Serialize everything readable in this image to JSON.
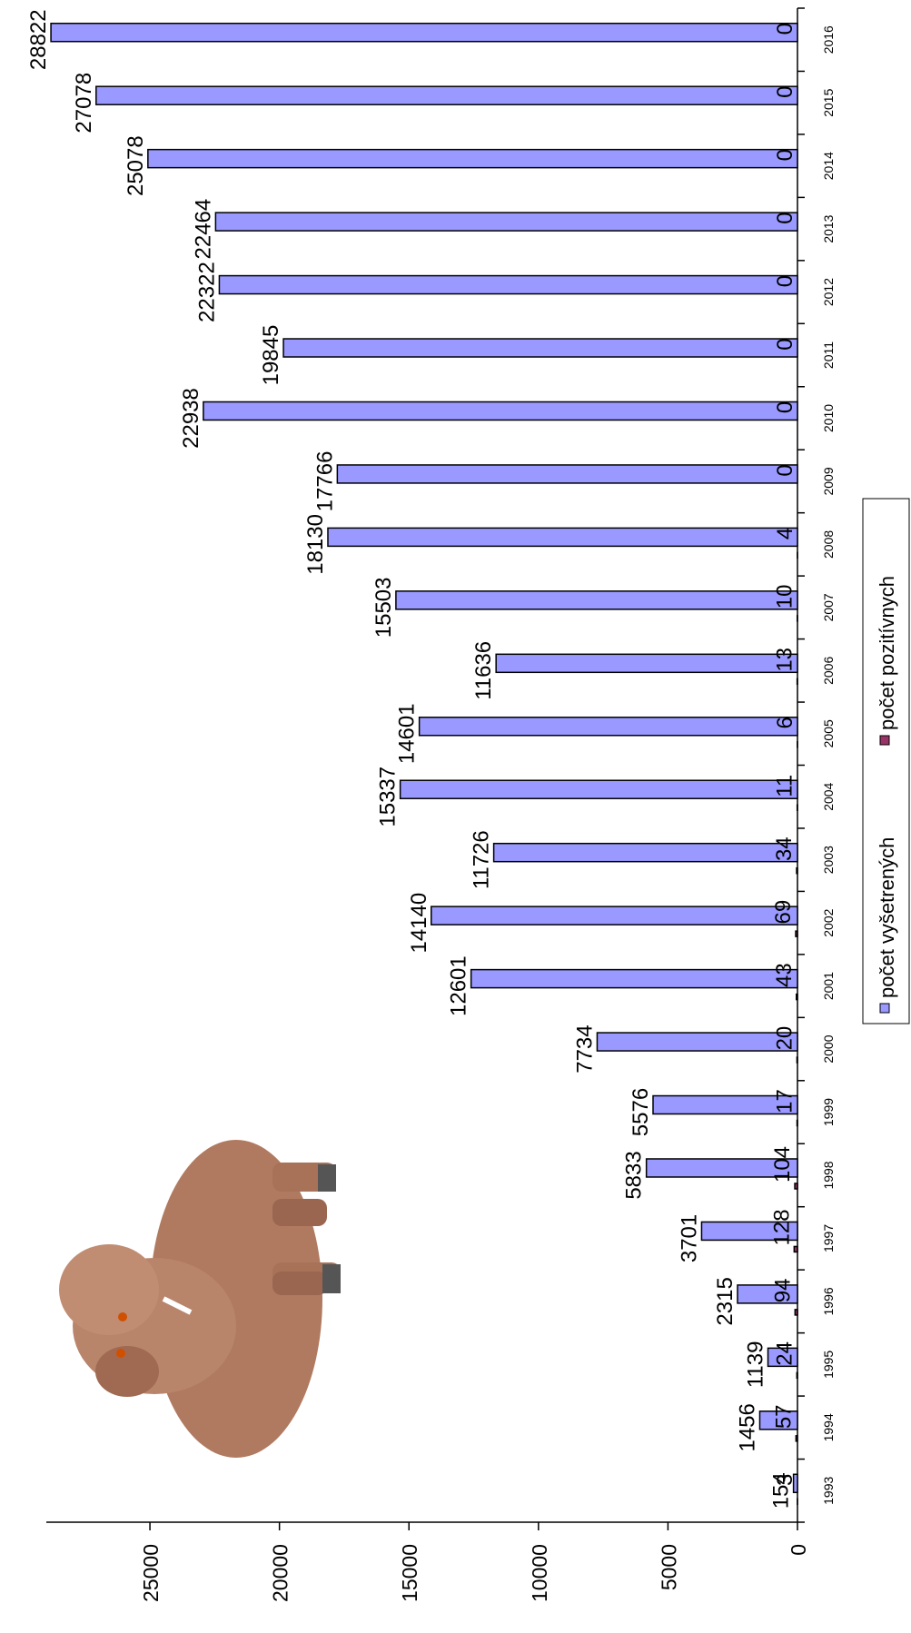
{
  "chart_data": {
    "type": "bar",
    "categories": [
      "1993",
      "1994",
      "1995",
      "1996",
      "1997",
      "1998",
      "1999",
      "2000",
      "2001",
      "2002",
      "2003",
      "2004",
      "2005",
      "2006",
      "2007",
      "2008",
      "2009",
      "2010",
      "2011",
      "2012",
      "2013",
      "2014",
      "2015",
      "2016"
    ],
    "series": [
      {
        "name": "počet vyšetrených",
        "color": "#9999ff",
        "values": [
          154,
          1456,
          1139,
          2315,
          3701,
          5833,
          5576,
          7734,
          12601,
          14140,
          11726,
          15337,
          14601,
          11636,
          15503,
          18130,
          17766,
          22938,
          19845,
          22322,
          22464,
          25078,
          27078,
          28822
        ]
      },
      {
        "name": "počet pozitívnych",
        "color": "#993366",
        "values": [
          3,
          57,
          24,
          94,
          128,
          104,
          17,
          20,
          43,
          69,
          34,
          11,
          6,
          13,
          10,
          4,
          0,
          0,
          0,
          0,
          0,
          0,
          0,
          0
        ]
      }
    ],
    "ylim": [
      0,
      29000
    ],
    "yticks": [
      0,
      5000,
      10000,
      15000,
      20000,
      25000
    ],
    "legend": "bottom"
  }
}
